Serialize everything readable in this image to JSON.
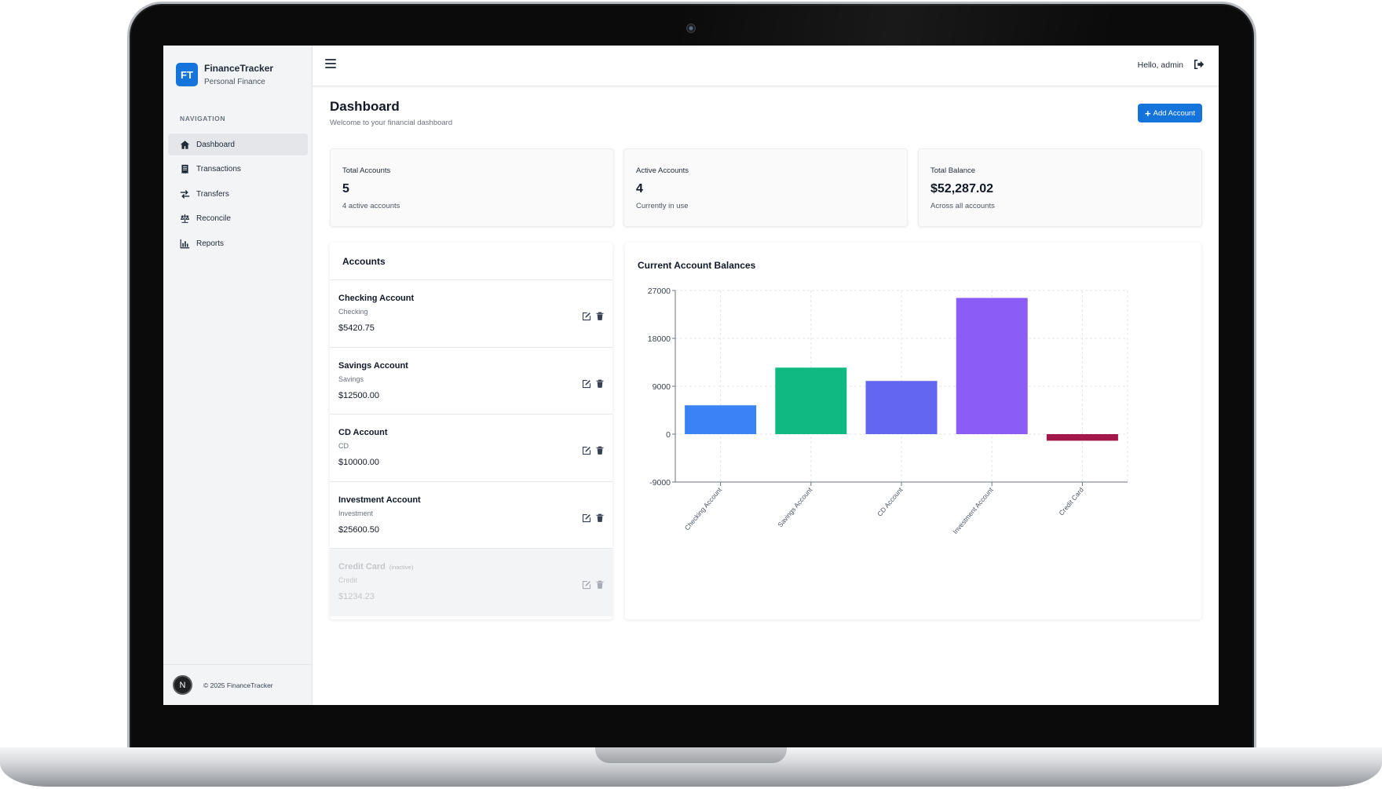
{
  "brand": {
    "logo": "FT",
    "name": "FinanceTracker",
    "subtitle": "Personal Finance"
  },
  "nav": {
    "heading": "NAVIGATION",
    "items": [
      {
        "label": "Dashboard",
        "icon": "home-icon",
        "active": true
      },
      {
        "label": "Transactions",
        "icon": "receipt-icon",
        "active": false
      },
      {
        "label": "Transfers",
        "icon": "exchange-icon",
        "active": false
      },
      {
        "label": "Reconcile",
        "icon": "scale-icon",
        "active": false
      },
      {
        "label": "Reports",
        "icon": "bar-chart-icon",
        "active": false
      }
    ]
  },
  "footer": {
    "avatar": "N",
    "copyright": "© 2025 FinanceTracker"
  },
  "topbar": {
    "greeting": "Hello, admin",
    "menu_icon": "hamburger-icon",
    "logout_icon": "sign-out-icon"
  },
  "page": {
    "title": "Dashboard",
    "subtitle": "Welcome to your financial dashboard",
    "add_button": "Add Account"
  },
  "stats": [
    {
      "label": "Total Accounts",
      "value": "5",
      "note": "4 active accounts"
    },
    {
      "label": "Active Accounts",
      "value": "4",
      "note": "Currently in use"
    },
    {
      "label": "Total Balance",
      "value": "$52,287.02",
      "note": "Across all accounts"
    }
  ],
  "accounts": {
    "title": "Accounts",
    "inactive_tag": "(inactive)",
    "items": [
      {
        "name": "Checking Account",
        "type": "Checking",
        "balance": "$5420.75",
        "active": true
      },
      {
        "name": "Savings Account",
        "type": "Savings",
        "balance": "$12500.00",
        "active": true
      },
      {
        "name": "CD Account",
        "type": "CD",
        "balance": "$10000.00",
        "active": true
      },
      {
        "name": "Investment Account",
        "type": "Investment",
        "balance": "$25600.50",
        "active": true
      },
      {
        "name": "Credit Card",
        "type": "Credit",
        "balance": "$1234.23",
        "active": false
      }
    ]
  },
  "colors": {
    "primary": "#1474dc",
    "checking": "#3b82f6",
    "savings": "#10b981",
    "cd": "#6366f1",
    "investment": "#8b5cf6",
    "credit": "#a3174a"
  },
  "chart_data": {
    "type": "bar",
    "title": "Current Account Balances",
    "categories": [
      "Checking Account",
      "Savings Account",
      "CD Account",
      "Investment Account",
      "Credit Card"
    ],
    "values": [
      5420.75,
      12500.0,
      10000.0,
      25600.5,
      -1234.23
    ],
    "bar_colors": [
      "#3b82f6",
      "#10b981",
      "#6366f1",
      "#8b5cf6",
      "#a3174a"
    ],
    "ylim": [
      -9000,
      27000
    ],
    "yticks": [
      -9000,
      0,
      9000,
      18000,
      27000
    ],
    "grid": true,
    "legend": "none"
  }
}
